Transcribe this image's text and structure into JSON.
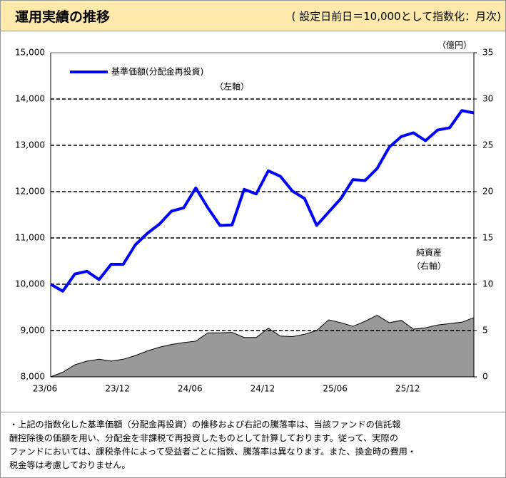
{
  "header": {
    "title": "運用実績の推移",
    "subtitle": "( 設定日前日＝10,000として指数化：月次)"
  },
  "chart_data": {
    "type": "line",
    "categories": [
      "23/06",
      null,
      null,
      null,
      null,
      null,
      "23/12",
      null,
      null,
      null,
      null,
      null,
      "24/06",
      null,
      null,
      null,
      null,
      null,
      "24/12",
      null,
      null,
      null,
      null,
      null,
      "25/06",
      null,
      null,
      null,
      null,
      null,
      "25/12",
      null,
      null,
      null,
      null,
      null
    ],
    "series": [
      {
        "name": "基準価額(分配金再投資)",
        "color": "#0000ff",
        "type": "line",
        "values": [
          10000,
          9850,
          10220,
          10280,
          10100,
          10430,
          10430,
          10850,
          11100,
          11300,
          11580,
          11650,
          12080,
          11650,
          11270,
          11280,
          12050,
          11950,
          12450,
          12330,
          12010,
          11850,
          11270,
          11560,
          11850,
          12260,
          12240,
          12500,
          12960,
          13190,
          13270,
          13100,
          13330,
          13380,
          13750,
          13700
        ]
      },
      {
        "name": "純資産",
        "color": "#999999",
        "type": "area",
        "axis": "y2",
        "values": [
          0,
          0.5,
          1.3,
          1.7,
          1.9,
          1.7,
          1.9,
          2.3,
          2.8,
          3.2,
          3.5,
          3.7,
          3.85,
          4.75,
          4.75,
          4.8,
          4.25,
          4.25,
          5.25,
          4.4,
          4.35,
          4.6,
          5.0,
          6.15,
          5.85,
          5.45,
          6.0,
          6.65,
          5.85,
          6.1,
          5.15,
          5.3,
          5.6,
          5.75,
          5.9,
          6.4
        ]
      }
    ],
    "legend_note": "（左軸）",
    "annotation": [
      "純資産",
      "（右軸）"
    ],
    "y2_unit": "（億円）",
    "ylim": [
      8000,
      15000
    ],
    "yticks": [
      {
        "value": 8000,
        "label": "8,000"
      },
      {
        "value": 9000,
        "label": "9,000"
      },
      {
        "value": 10000,
        "label": "10,000"
      },
      {
        "value": 11000,
        "label": "11,000"
      },
      {
        "value": 12000,
        "label": "12,000"
      },
      {
        "value": 13000,
        "label": "13,000"
      },
      {
        "value": 14000,
        "label": "14,000"
      },
      {
        "value": 15000,
        "label": "15,000"
      }
    ],
    "y2lim": [
      0,
      35
    ],
    "y2ticks": [
      0,
      5,
      10,
      15,
      20,
      25,
      30,
      35
    ],
    "grid": true
  },
  "note": [
    "・上記の指数化した基準価額（分配金再投資）の推移および右記の騰落率は、当該ファンドの信託報",
    "酬控除後の価額を用い、分配金を非課税で再投資したものとして計算しております。従って、実際の",
    "ファンドにおいては、課税条件によって受益者ごとに指数、騰落率は異なります。また、換金時の費用・",
    "税金等は考慮しておりません。"
  ]
}
